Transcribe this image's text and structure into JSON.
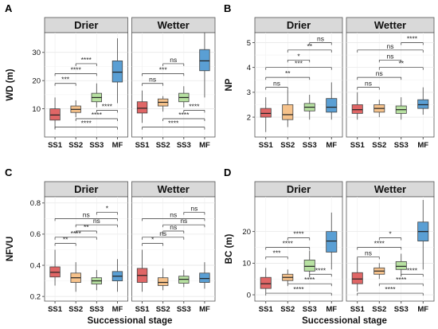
{
  "figure": {
    "facets": [
      "Drier",
      "Wetter"
    ],
    "x_axis_title": "Successional stage",
    "colors": {
      "SS1": "#e06666",
      "SS2": "#f6c28b",
      "SS3": "#b7e1a1",
      "MF": "#5a9fd4"
    }
  },
  "chart_data": [
    {
      "panel": "A",
      "type": "boxplot",
      "ylabel": "WD (m)",
      "yticks": [
        10,
        20,
        30
      ],
      "ylim": [
        0,
        37
      ],
      "categories": [
        "SS1",
        "SS2",
        "SS3",
        "MF"
      ],
      "facets": [
        {
          "name": "Drier",
          "boxes": [
            {
              "category": "SS1",
              "min": 3,
              "q1": 6,
              "median": 7.8,
              "q3": 10,
              "max": 14
            },
            {
              "category": "SS2",
              "min": 7,
              "q1": 8.7,
              "median": 9.8,
              "q3": 11,
              "max": 13
            },
            {
              "category": "SS3",
              "min": 10.5,
              "q1": 12.5,
              "median": 14,
              "q3": 15.5,
              "max": 19
            },
            {
              "category": "MF",
              "min": 12,
              "q1": 19.5,
              "median": 23,
              "q3": 27,
              "max": 35
            }
          ],
          "comparisons": [
            {
              "from": "SS1",
              "to": "SS2",
              "label": "***",
              "y": 19
            },
            {
              "from": "SS1",
              "to": "SS3",
              "label": "****",
              "y": 22.5
            },
            {
              "from": "SS2",
              "to": "SS3",
              "label": "****",
              "y": 26
            },
            {
              "from": "SS3",
              "to": "MF",
              "label": "****",
              "y": 9.5
            },
            {
              "from": "SS2",
              "to": "MF",
              "label": "****",
              "y": 6.5
            },
            {
              "from": "SS1",
              "to": "MF",
              "label": "****",
              "y": 3.5
            }
          ]
        },
        {
          "name": "Wetter",
          "boxes": [
            {
              "category": "SS1",
              "min": 5,
              "q1": 8.5,
              "median": 10.2,
              "q3": 12.5,
              "max": 16.5
            },
            {
              "category": "SS2",
              "min": 9,
              "q1": 11,
              "median": 12.3,
              "q3": 13.5,
              "max": 14.5
            },
            {
              "category": "SS3",
              "min": 10.5,
              "q1": 12.5,
              "median": 14,
              "q3": 15.5,
              "max": 18
            },
            {
              "category": "MF",
              "min": 14,
              "q1": 23.5,
              "median": 27,
              "q3": 31,
              "max": 37
            }
          ],
          "comparisons": [
            {
              "from": "SS1",
              "to": "SS2",
              "label": "ns",
              "y": 19
            },
            {
              "from": "SS1",
              "to": "SS3",
              "label": "***",
              "y": 22.5
            },
            {
              "from": "SS2",
              "to": "SS3",
              "label": "ns",
              "y": 26
            },
            {
              "from": "SS3",
              "to": "MF",
              "label": "****",
              "y": 9.5
            },
            {
              "from": "SS2",
              "to": "MF",
              "label": "****",
              "y": 6.5
            },
            {
              "from": "SS1",
              "to": "MF",
              "label": "****",
              "y": 3.5
            }
          ]
        }
      ]
    },
    {
      "panel": "B",
      "type": "boxplot",
      "ylabel": "NP",
      "yticks": [
        2,
        3,
        4,
        5
      ],
      "ylim": [
        1.2,
        5.4
      ],
      "categories": [
        "SS1",
        "SS2",
        "SS3",
        "MF"
      ],
      "facets": [
        {
          "name": "Drier",
          "boxes": [
            {
              "category": "SS1",
              "min": 1.4,
              "q1": 2.0,
              "median": 2.15,
              "q3": 2.35,
              "max": 2.8
            },
            {
              "category": "SS2",
              "min": 1.6,
              "q1": 1.9,
              "median": 2.1,
              "q3": 2.5,
              "max": 3.1
            },
            {
              "category": "SS3",
              "min": 1.9,
              "q1": 2.25,
              "median": 2.4,
              "q3": 2.55,
              "max": 2.9
            },
            {
              "category": "MF",
              "min": 1.9,
              "q1": 2.2,
              "median": 2.4,
              "q3": 2.75,
              "max": 3.4
            }
          ],
          "comparisons": [
            {
              "from": "SS1",
              "to": "SS2",
              "label": "ns",
              "y": 3.2
            },
            {
              "from": "SS2",
              "to": "SS3",
              "label": "*",
              "y": 4.3
            },
            {
              "from": "SS1",
              "to": "SS3",
              "label": "**",
              "y": 3.6
            },
            {
              "from": "SS2",
              "to": "MF",
              "label": "**",
              "y": 4.7
            },
            {
              "from": "SS1",
              "to": "MF",
              "label": "***",
              "y": 4.0
            },
            {
              "from": "SS3",
              "to": "MF",
              "label": "ns",
              "y": 5.0
            }
          ]
        },
        {
          "name": "Wetter",
          "boxes": [
            {
              "category": "SS1",
              "min": 1.9,
              "q1": 2.15,
              "median": 2.3,
              "q3": 2.5,
              "max": 3.0
            },
            {
              "category": "SS2",
              "min": 2.0,
              "q1": 2.2,
              "median": 2.35,
              "q3": 2.5,
              "max": 2.7
            },
            {
              "category": "SS3",
              "min": 1.9,
              "q1": 2.15,
              "median": 2.3,
              "q3": 2.45,
              "max": 2.8
            },
            {
              "category": "MF",
              "min": 2.1,
              "q1": 2.35,
              "median": 2.5,
              "q3": 2.7,
              "max": 3.2
            }
          ],
          "comparisons": [
            {
              "from": "SS1",
              "to": "SS2",
              "label": "ns",
              "y": 3.2
            },
            {
              "from": "SS1",
              "to": "SS3",
              "label": "ns",
              "y": 3.6
            },
            {
              "from": "SS2",
              "to": "MF",
              "label": "**",
              "y": 4.0
            },
            {
              "from": "SS2",
              "to": "SS3",
              "label": "ns",
              "y": 4.3
            },
            {
              "from": "SS1",
              "to": "MF",
              "label": "ns",
              "y": 4.7
            },
            {
              "from": "SS3",
              "to": "MF",
              "label": "****",
              "y": 5.0
            }
          ]
        }
      ]
    },
    {
      "panel": "C",
      "type": "boxplot",
      "ylabel": "NFVU",
      "yticks": [
        0.2,
        0.4,
        0.6,
        0.8
      ],
      "ylim": [
        0.17,
        0.84
      ],
      "categories": [
        "SS1",
        "SS2",
        "SS3",
        "MF"
      ],
      "facets": [
        {
          "name": "Drier",
          "boxes": [
            {
              "category": "SS1",
              "min": 0.27,
              "q1": 0.325,
              "median": 0.355,
              "q3": 0.39,
              "max": 0.5
            },
            {
              "category": "SS2",
              "min": 0.23,
              "q1": 0.29,
              "median": 0.32,
              "q3": 0.35,
              "max": 0.42
            },
            {
              "category": "SS3",
              "min": 0.24,
              "q1": 0.28,
              "median": 0.3,
              "q3": 0.32,
              "max": 0.37
            },
            {
              "category": "MF",
              "min": 0.23,
              "q1": 0.3,
              "median": 0.33,
              "q3": 0.36,
              "max": 0.44
            }
          ],
          "comparisons": [
            {
              "from": "SS1",
              "to": "SS2",
              "label": "**",
              "y": 0.54
            },
            {
              "from": "SS1",
              "to": "SS3",
              "label": "****",
              "y": 0.58
            },
            {
              "from": "SS2",
              "to": "SS3",
              "label": "**",
              "y": 0.62
            },
            {
              "from": "SS2",
              "to": "MF",
              "label": "ns",
              "y": 0.66
            },
            {
              "from": "SS1",
              "to": "MF",
              "label": "ns",
              "y": 0.7
            },
            {
              "from": "SS3",
              "to": "MF",
              "label": "*",
              "y": 0.74
            }
          ]
        },
        {
          "name": "Wetter",
          "boxes": [
            {
              "category": "SS1",
              "min": 0.23,
              "q1": 0.29,
              "median": 0.335,
              "q3": 0.38,
              "max": 0.5
            },
            {
              "category": "SS2",
              "min": 0.24,
              "q1": 0.27,
              "median": 0.29,
              "q3": 0.32,
              "max": 0.38
            },
            {
              "category": "SS3",
              "min": 0.26,
              "q1": 0.285,
              "median": 0.31,
              "q3": 0.33,
              "max": 0.37
            },
            {
              "category": "MF",
              "min": 0.25,
              "q1": 0.29,
              "median": 0.315,
              "q3": 0.35,
              "max": 0.42
            }
          ],
          "comparisons": [
            {
              "from": "SS1",
              "to": "SS2",
              "label": "*",
              "y": 0.54
            },
            {
              "from": "SS1",
              "to": "SS3",
              "label": "ns",
              "y": 0.58
            },
            {
              "from": "SS2",
              "to": "SS3",
              "label": "ns",
              "y": 0.62
            },
            {
              "from": "SS2",
              "to": "MF",
              "label": "ns",
              "y": 0.66
            },
            {
              "from": "SS1",
              "to": "MF",
              "label": "ns",
              "y": 0.7
            },
            {
              "from": "SS3",
              "to": "MF",
              "label": "ns",
              "y": 0.74
            }
          ]
        }
      ]
    },
    {
      "panel": "D",
      "type": "boxplot",
      "ylabel": "BC (m)",
      "yticks": [
        0,
        10,
        20
      ],
      "ylim": [
        -2,
        31
      ],
      "categories": [
        "SS1",
        "SS2",
        "SS3",
        "MF"
      ],
      "facets": [
        {
          "name": "Drier",
          "boxes": [
            {
              "category": "SS1",
              "min": 0.5,
              "q1": 2,
              "median": 3.5,
              "q3": 5.5,
              "max": 8.5
            },
            {
              "category": "SS2",
              "min": 3.5,
              "q1": 4.5,
              "median": 5.5,
              "q3": 6.5,
              "max": 8
            },
            {
              "category": "SS3",
              "min": 5.5,
              "q1": 7.5,
              "median": 9,
              "q3": 11,
              "max": 14
            },
            {
              "category": "MF",
              "min": 8,
              "q1": 13.5,
              "median": 17,
              "q3": 20,
              "max": 26
            }
          ],
          "comparisons": [
            {
              "from": "SS1",
              "to": "SS2",
              "label": "***",
              "y": 12
            },
            {
              "from": "SS1",
              "to": "SS3",
              "label": "****",
              "y": 15
            },
            {
              "from": "SS2",
              "to": "SS3",
              "label": "****",
              "y": 18
            },
            {
              "from": "SS3",
              "to": "MF",
              "label": "****",
              "y": 6.5
            },
            {
              "from": "SS2",
              "to": "MF",
              "label": "****",
              "y": 3.5
            },
            {
              "from": "SS1",
              "to": "MF",
              "label": "****",
              "y": 0.5
            }
          ]
        },
        {
          "name": "Wetter",
          "boxes": [
            {
              "category": "SS1",
              "min": 1,
              "q1": 3.5,
              "median": 5,
              "q3": 7,
              "max": 11.5
            },
            {
              "category": "SS2",
              "min": 5,
              "q1": 6.5,
              "median": 7.5,
              "q3": 8.5,
              "max": 10
            },
            {
              "category": "SS3",
              "min": 6,
              "q1": 8,
              "median": 9,
              "q3": 10.5,
              "max": 13
            },
            {
              "category": "MF",
              "min": 8,
              "q1": 17,
              "median": 20,
              "q3": 23,
              "max": 30
            }
          ],
          "comparisons": [
            {
              "from": "SS1",
              "to": "SS2",
              "label": "ns",
              "y": 12
            },
            {
              "from": "SS1",
              "to": "SS3",
              "label": "****",
              "y": 15
            },
            {
              "from": "SS2",
              "to": "SS3",
              "label": "*",
              "y": 18
            },
            {
              "from": "SS3",
              "to": "MF",
              "label": "****",
              "y": 6.5
            },
            {
              "from": "SS2",
              "to": "MF",
              "label": "****",
              "y": 3.5
            },
            {
              "from": "SS1",
              "to": "MF",
              "label": "****",
              "y": 0.5
            }
          ]
        }
      ]
    }
  ]
}
